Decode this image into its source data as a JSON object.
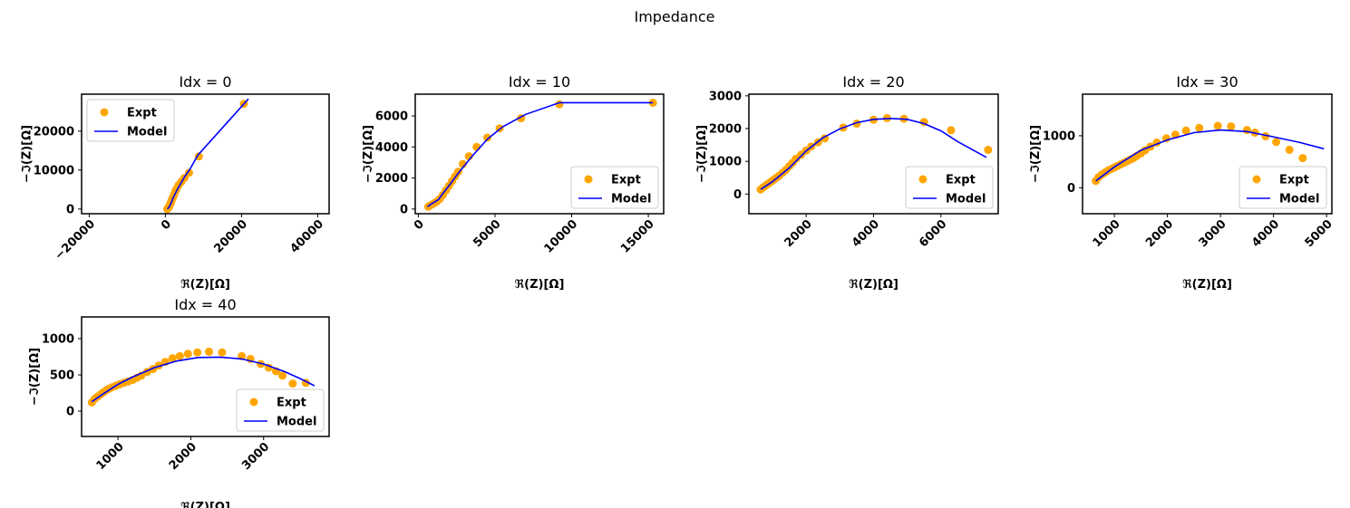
{
  "figure": {
    "title": "Impedance"
  },
  "colors": {
    "expt": "#FFA500",
    "model": "#0000FF",
    "axes": "#000000",
    "legend_border": "#cccccc"
  },
  "chart_data": [
    {
      "type": "scatter",
      "title": "Idx = 0",
      "xlabel": "ℜ(Z)[Ω]",
      "ylabel": "−ℑ(Z)[Ω]",
      "xlim": [
        -22000,
        43000
      ],
      "ylim": [
        -1200,
        29500
      ],
      "xticks": [
        -20000,
        0,
        20000,
        40000
      ],
      "xtick_labels": [
        "−20000",
        "0",
        "20000",
        "40000"
      ],
      "yticks": [
        0,
        10000,
        20000
      ],
      "ytick_labels": [
        "0",
        "10000",
        "20000"
      ],
      "xtick_rotation": 45,
      "legend": "upper-left",
      "series": [
        {
          "name": "Expt",
          "kind": "scatter",
          "x": [
            500,
            700,
            900,
            1100,
            1300,
            1500,
            1700,
            2000,
            2300,
            2600,
            3000,
            3500,
            4200,
            5000,
            6200,
            8800,
            20600
          ],
          "y": [
            0,
            200,
            500,
            900,
            1300,
            1800,
            2400,
            3000,
            3700,
            4500,
            5300,
            6200,
            7000,
            8000,
            9300,
            13500,
            27000
          ]
        },
        {
          "name": "Model",
          "kind": "line",
          "x": [
            500,
            1000,
            1500,
            2000,
            3000,
            4000,
            5000,
            6500,
            8500,
            21800
          ],
          "y": [
            0,
            500,
            1500,
            2800,
            4800,
            6500,
            8200,
            10300,
            13800,
            28300
          ]
        }
      ]
    },
    {
      "type": "scatter",
      "title": "Idx = 10",
      "xlabel": "ℜ(Z)[Ω]",
      "ylabel": "−ℑ(Z)[Ω]",
      "xlim": [
        -200,
        16000
      ],
      "ylim": [
        -300,
        7400
      ],
      "xticks": [
        0,
        5000,
        10000,
        15000
      ],
      "xtick_labels": [
        "0",
        "5000",
        "10000",
        "15000"
      ],
      "yticks": [
        0,
        2000,
        4000,
        6000
      ],
      "ytick_labels": [
        "0",
        "2000",
        "4000",
        "6000"
      ],
      "xtick_rotation": 45,
      "legend": "lower-right",
      "series": [
        {
          "name": "Expt",
          "kind": "scatter",
          "x": [
            650,
            750,
            900,
            1050,
            1200,
            1400,
            1600,
            1800,
            2000,
            2200,
            2400,
            2600,
            2900,
            3300,
            3800,
            4500,
            5300,
            6700,
            9200,
            15300
          ],
          "y": [
            150,
            220,
            300,
            380,
            480,
            650,
            900,
            1200,
            1500,
            1800,
            2100,
            2400,
            2900,
            3400,
            4000,
            4600,
            5200,
            5850,
            6750,
            6850
          ]
        },
        {
          "name": "Model",
          "kind": "line",
          "x": [
            600,
            800,
            1000,
            1300,
            1600,
            2000,
            2600,
            3500,
            4500,
            5500,
            7000,
            9200,
            15300
          ],
          "y": [
            150,
            300,
            420,
            600,
            1000,
            1500,
            2300,
            3400,
            4500,
            5300,
            6100,
            6850,
            6850
          ]
        }
      ]
    },
    {
      "type": "scatter",
      "title": "Idx = 20",
      "xlabel": "ℜ(Z)[Ω]",
      "ylabel": "−ℑ(Z)[Ω]",
      "xlim": [
        300,
        7700
      ],
      "ylim": [
        -600,
        3050
      ],
      "xticks": [
        2000,
        4000,
        6000
      ],
      "xtick_labels": [
        "2000",
        "4000",
        "6000"
      ],
      "yticks": [
        0,
        1000,
        2000,
        3000
      ],
      "ytick_labels": [
        "0",
        "1000",
        "2000",
        "3000"
      ],
      "xtick_rotation": 45,
      "legend": "lower-right",
      "series": [
        {
          "name": "Expt",
          "kind": "scatter",
          "x": [
            650,
            720,
            800,
            880,
            960,
            1040,
            1120,
            1200,
            1300,
            1400,
            1500,
            1600,
            1700,
            1850,
            2000,
            2150,
            2350,
            2550,
            3100,
            3500,
            4000,
            4400,
            4900,
            5500,
            6300,
            7400
          ],
          "y": [
            140,
            200,
            260,
            320,
            380,
            440,
            500,
            560,
            650,
            740,
            850,
            960,
            1080,
            1200,
            1330,
            1450,
            1580,
            1700,
            2030,
            2150,
            2270,
            2320,
            2300,
            2200,
            1950,
            1350
          ]
        },
        {
          "name": "Model",
          "kind": "line",
          "x": [
            650,
            1000,
            1500,
            2000,
            2500,
            3000,
            3500,
            4000,
            4500,
            5000,
            5500,
            6000,
            6500,
            7350
          ],
          "y": [
            140,
            380,
            800,
            1320,
            1720,
            1990,
            2180,
            2280,
            2310,
            2280,
            2150,
            1930,
            1600,
            1120
          ]
        }
      ]
    },
    {
      "type": "scatter",
      "title": "Idx = 30",
      "xlabel": "ℜ(Z)[Ω]",
      "ylabel": "−ℑ(Z)[Ω]",
      "xlim": [
        400,
        5100
      ],
      "ylim": [
        -500,
        1800
      ],
      "xticks": [
        1000,
        2000,
        3000,
        4000,
        5000
      ],
      "xtick_labels": [
        "1000",
        "2000",
        "3000",
        "4000",
        "5000"
      ],
      "yticks": [
        0,
        1000
      ],
      "ytick_labels": [
        "0",
        "1000"
      ],
      "xtick_rotation": 45,
      "legend": "lower-right",
      "series": [
        {
          "name": "Expt",
          "kind": "scatter",
          "x": [
            650,
            700,
            760,
            820,
            880,
            940,
            1000,
            1060,
            1120,
            1180,
            1240,
            1300,
            1360,
            1420,
            1500,
            1580,
            1680,
            1800,
            1980,
            2150,
            2350,
            2600,
            2950,
            3200,
            3500,
            3650,
            3850,
            4050,
            4300,
            4550
          ],
          "y": [
            130,
            200,
            250,
            290,
            330,
            360,
            390,
            420,
            450,
            480,
            510,
            540,
            570,
            610,
            660,
            720,
            790,
            870,
            950,
            1020,
            1100,
            1150,
            1190,
            1180,
            1110,
            1060,
            990,
            880,
            730,
            570
          ]
        },
        {
          "name": "Model",
          "kind": "line",
          "x": [
            650,
            1000,
            1500,
            2000,
            2500,
            3000,
            3500,
            4000,
            4500,
            4950
          ],
          "y": [
            130,
            400,
            720,
            920,
            1060,
            1110,
            1080,
            980,
            870,
            750
          ]
        }
      ]
    },
    {
      "type": "scatter",
      "title": "Idx = 40",
      "xlabel": "ℜ(Z)[Ω]",
      "ylabel": "−ℑ(Z)[Ω]",
      "xlim": [
        500,
        3900
      ],
      "ylim": [
        -350,
        1300
      ],
      "xticks": [
        1000,
        2000,
        3000
      ],
      "xtick_labels": [
        "1000",
        "2000",
        "3000"
      ],
      "yticks": [
        0,
        500,
        1000
      ],
      "ytick_labels": [
        "0",
        "500",
        "1000"
      ],
      "xtick_rotation": 45,
      "legend": "lower-right",
      "series": [
        {
          "name": "Expt",
          "kind": "scatter",
          "x": [
            640,
            680,
            720,
            760,
            800,
            840,
            880,
            920,
            970,
            1020,
            1080,
            1140,
            1200,
            1260,
            1320,
            1400,
            1480,
            1560,
            1650,
            1750,
            1850,
            1960,
            2090,
            2250,
            2430,
            2700,
            2820,
            2960,
            3070,
            3170,
            3260,
            3400,
            3580
          ],
          "y": [
            120,
            170,
            200,
            230,
            260,
            290,
            310,
            330,
            350,
            370,
            390,
            410,
            430,
            460,
            490,
            540,
            580,
            630,
            680,
            730,
            760,
            790,
            810,
            820,
            810,
            760,
            720,
            650,
            600,
            550,
            490,
            380,
            390
          ]
        },
        {
          "name": "Model",
          "kind": "line",
          "x": [
            640,
            800,
            1000,
            1200,
            1500,
            1800,
            2100,
            2400,
            2700,
            3000,
            3300,
            3500,
            3700
          ],
          "y": [
            130,
            240,
            370,
            470,
            600,
            690,
            740,
            745,
            720,
            650,
            540,
            450,
            350
          ]
        }
      ]
    }
  ]
}
